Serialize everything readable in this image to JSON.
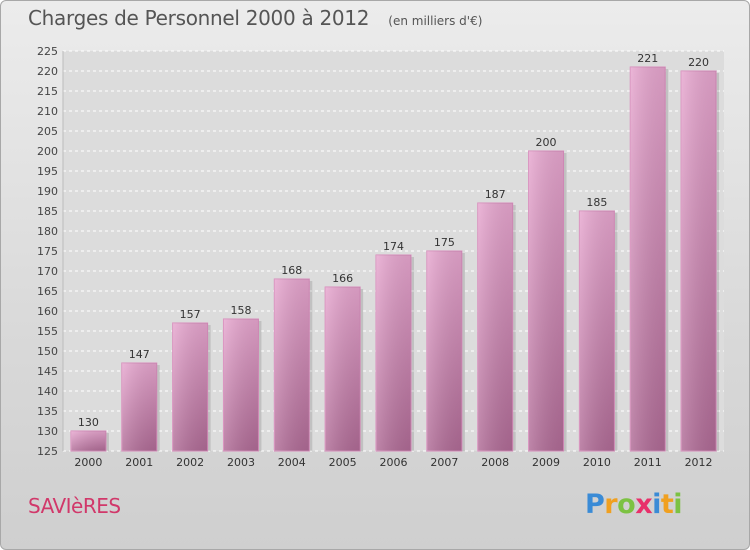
{
  "chart_data": {
    "type": "bar",
    "title": "Charges de Personnel 2000 à 2012",
    "subtitle": "(en milliers d'€)",
    "categories": [
      "2000",
      "2001",
      "2002",
      "2003",
      "2004",
      "2005",
      "2006",
      "2007",
      "2008",
      "2009",
      "2010",
      "2011",
      "2012"
    ],
    "values": [
      130,
      147,
      157,
      158,
      168,
      166,
      174,
      175,
      187,
      200,
      185,
      221,
      220
    ],
    "ylim": [
      125,
      225
    ],
    "yticks": [
      125,
      130,
      135,
      140,
      145,
      150,
      155,
      160,
      165,
      170,
      175,
      180,
      185,
      190,
      195,
      200,
      205,
      210,
      215,
      220,
      225
    ],
    "grid": true,
    "bar_color_top": "#e7a6cf",
    "bar_color_bottom": "#b06b96"
  },
  "place_name": "SAVIèRES",
  "logo": {
    "letters": [
      "P",
      "r",
      "o",
      "x",
      "i",
      "t",
      "i"
    ],
    "colors": [
      "#3a8bd6",
      "#f0a020",
      "#7cc242",
      "#e8306a",
      "#3a8bd6",
      "#f0a020",
      "#7cc242"
    ]
  }
}
